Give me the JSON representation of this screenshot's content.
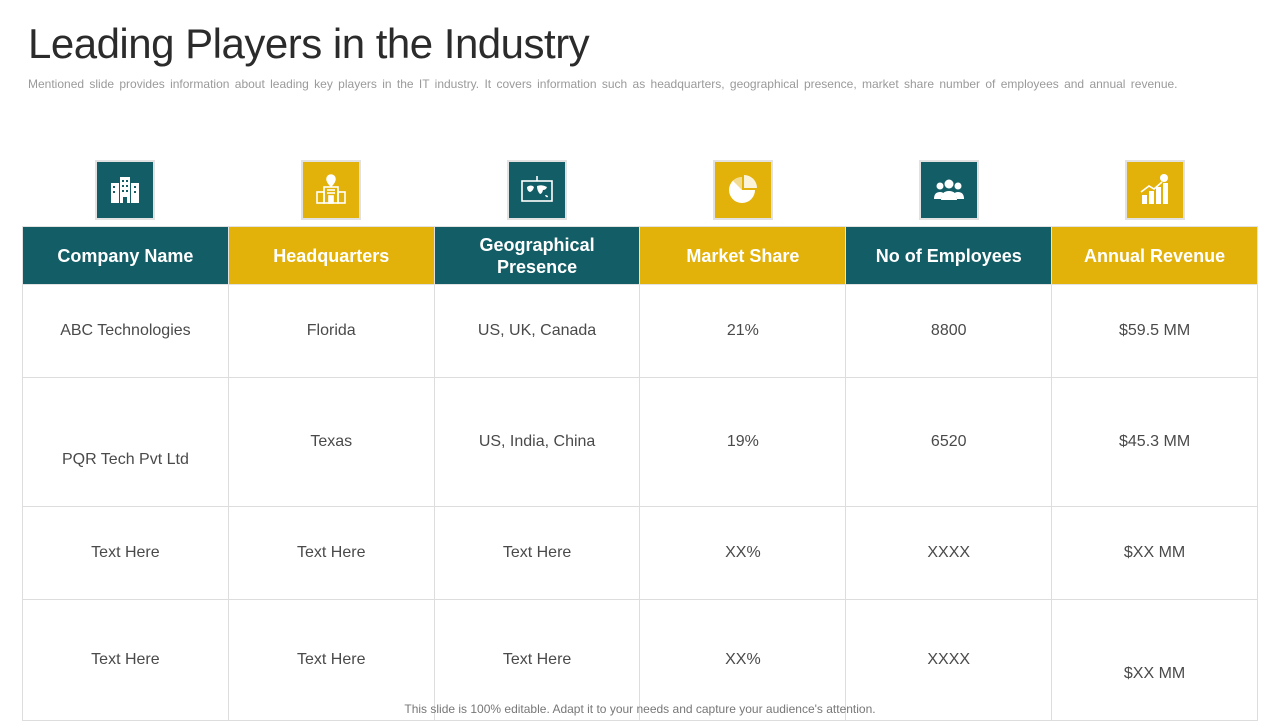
{
  "slide": {
    "title": "Leading Players in the Industry",
    "subtitle": "Mentioned slide provides  information  about leading  key players in the IT  industry. It covers  information  such as headquarters,  geographical  presence,  market share number  of employees and  annual  revenue.",
    "footer": "This slide is 100% editable. Adapt it to your needs and capture your audience's attention."
  },
  "colors": {
    "teal": "#135d66",
    "gold": "#e2b20b"
  },
  "icons": [
    "office-building-icon",
    "headquarters-location-icon",
    "world-map-board-icon",
    "pie-chart-head-icon",
    "people-group-icon",
    "revenue-growth-chart-icon"
  ],
  "table": {
    "headers": [
      "Company Name",
      "Headquarters",
      "Geographical Presence",
      "Market Share",
      "No of Employees",
      "Annual Revenue"
    ],
    "rows": [
      [
        "ABC Technologies",
        "Florida",
        "US, UK, Canada",
        "21%",
        "8800",
        "$59.5 MM"
      ],
      [
        "PQR Tech Pvt Ltd",
        "Texas",
        "US, India,  China",
        "19%",
        "6520",
        "$45.3 MM"
      ],
      [
        "Text  Here",
        "Text  Here",
        "Text  Here",
        "XX%",
        "XXXX",
        "$XX MM"
      ],
      [
        "Text  Here",
        "Text  Here",
        "Text  Here",
        "XX%",
        "XXXX",
        "$XX MM"
      ]
    ]
  }
}
